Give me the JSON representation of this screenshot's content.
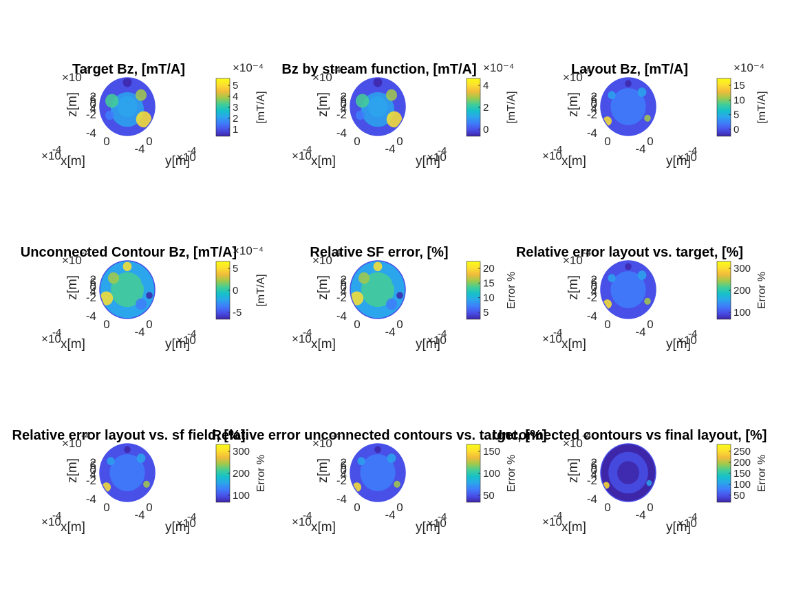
{
  "figure": {
    "background": "#ffffff"
  },
  "colormap": [
    "#3e26a8",
    "#4850e8",
    "#3f7cfa",
    "#2ba5ec",
    "#16c1c8",
    "#45ce95",
    "#a4c94a",
    "#f2bb3a",
    "#fde02f",
    "#f9fb15"
  ],
  "axis_common": {
    "xlabel": "x[m]",
    "ylabel": "y[m]",
    "zlabel": "z[m]",
    "exponent_base": "×10",
    "exponent_power": "-4",
    "z_ticks": [
      "2",
      "0",
      "-2",
      "-4"
    ],
    "z_top_glyph": "6",
    "z_mid_glyph": "4",
    "x_tick": "0",
    "y_ticks": [
      "-4",
      "0"
    ]
  },
  "chart_data": [
    {
      "type": "heatmap",
      "title": "Target Bz, [mT/A]",
      "colorbar_label": "[mT/A]",
      "cb_exponent": "×10⁻⁴",
      "colorbar_ticks": [
        "5",
        "4",
        "3",
        "2",
        "1"
      ],
      "pattern": "target"
    },
    {
      "type": "heatmap",
      "title": "Bz by stream function, [mT/A]",
      "colorbar_label": "[mT/A]",
      "cb_exponent": "×10⁻⁴",
      "colorbar_ticks": [
        "4",
        "2",
        "0"
      ],
      "pattern": "target"
    },
    {
      "type": "heatmap",
      "title": "Layout Bz, [mT/A]",
      "colorbar_label": "[mT/A]",
      "cb_exponent": "×10⁻⁴",
      "colorbar_ticks": [
        "15",
        "10",
        "5",
        "0"
      ],
      "pattern": "low"
    },
    {
      "type": "heatmap",
      "title": "Unconnected Contour Bz, [mT/A]",
      "colorbar_label": "[mT/A]",
      "cb_exponent": "×10⁻⁴",
      "colorbar_ticks": [
        "5",
        "0",
        "-5"
      ],
      "pattern": "mid"
    },
    {
      "type": "heatmap",
      "title": "Relative SF error, [%]",
      "colorbar_label": "Error %",
      "cb_exponent": "",
      "colorbar_ticks": [
        "20",
        "15",
        "10",
        "5"
      ],
      "pattern": "mid"
    },
    {
      "type": "heatmap",
      "title": "Relative error layout vs. target, [%]",
      "colorbar_label": "Error %",
      "cb_exponent": "",
      "colorbar_ticks": [
        "300",
        "200",
        "100"
      ],
      "pattern": "low"
    },
    {
      "type": "heatmap",
      "title": "Relative error layout vs. sf field, [%]",
      "colorbar_label": "Error %",
      "cb_exponent": "",
      "colorbar_ticks": [
        "300",
        "200",
        "100"
      ],
      "pattern": "low"
    },
    {
      "type": "heatmap",
      "title": "Relative error unconnected contours vs. target, [%]",
      "colorbar_label": "Error %",
      "cb_exponent": "",
      "colorbar_ticks": [
        "150",
        "100",
        "50"
      ],
      "pattern": "low"
    },
    {
      "type": "heatmap",
      "title": "Unconnected contours vs final layout, [%]",
      "colorbar_label": "Error %",
      "cb_exponent": "",
      "colorbar_ticks": [
        "250",
        "200",
        "150",
        "100",
        "50"
      ],
      "pattern": "verylow"
    }
  ]
}
